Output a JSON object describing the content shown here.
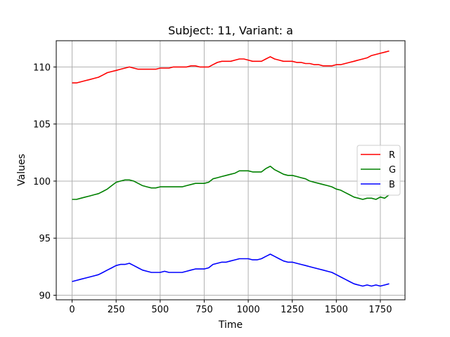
{
  "chart_data": {
    "type": "line",
    "title": "Subject: 11, Variant: a",
    "xlabel": "Time",
    "ylabel": "Values",
    "xlim": [
      -90,
      1890
    ],
    "ylim": [
      89.6,
      112.3
    ],
    "xticks": [
      0,
      250,
      500,
      750,
      1000,
      1250,
      1500,
      1750
    ],
    "yticks": [
      90,
      95,
      100,
      105,
      110
    ],
    "grid": true,
    "legend_position": "center-right",
    "series": [
      {
        "name": "R",
        "color": "#ff0000",
        "x": [
          0,
          25,
          50,
          75,
          100,
          125,
          150,
          175,
          200,
          225,
          250,
          275,
          300,
          325,
          350,
          375,
          400,
          425,
          450,
          475,
          500,
          525,
          550,
          575,
          600,
          625,
          650,
          675,
          700,
          725,
          750,
          775,
          800,
          825,
          850,
          875,
          900,
          925,
          950,
          975,
          1000,
          1025,
          1050,
          1075,
          1100,
          1125,
          1150,
          1175,
          1200,
          1225,
          1250,
          1275,
          1300,
          1325,
          1350,
          1375,
          1400,
          1425,
          1450,
          1475,
          1500,
          1525,
          1550,
          1575,
          1600,
          1625,
          1650,
          1675,
          1700,
          1725,
          1750,
          1775,
          1800
        ],
        "values": [
          108.6,
          108.6,
          108.7,
          108.8,
          108.9,
          109.0,
          109.1,
          109.3,
          109.5,
          109.6,
          109.7,
          109.8,
          109.9,
          110.0,
          109.9,
          109.8,
          109.8,
          109.8,
          109.8,
          109.8,
          109.9,
          109.9,
          109.9,
          110.0,
          110.0,
          110.0,
          110.0,
          110.1,
          110.1,
          110.0,
          110.0,
          110.0,
          110.2,
          110.4,
          110.5,
          110.5,
          110.5,
          110.6,
          110.7,
          110.7,
          110.6,
          110.5,
          110.5,
          110.5,
          110.7,
          110.9,
          110.7,
          110.6,
          110.5,
          110.5,
          110.5,
          110.4,
          110.4,
          110.3,
          110.3,
          110.2,
          110.2,
          110.1,
          110.1,
          110.1,
          110.2,
          110.2,
          110.3,
          110.4,
          110.5,
          110.6,
          110.7,
          110.8,
          111.0,
          111.1,
          111.2,
          111.3,
          111.4
        ]
      },
      {
        "name": "G",
        "color": "#008000",
        "x": [
          0,
          25,
          50,
          75,
          100,
          125,
          150,
          175,
          200,
          225,
          250,
          275,
          300,
          325,
          350,
          375,
          400,
          425,
          450,
          475,
          500,
          525,
          550,
          575,
          600,
          625,
          650,
          675,
          700,
          725,
          750,
          775,
          800,
          825,
          850,
          875,
          900,
          925,
          950,
          975,
          1000,
          1025,
          1050,
          1075,
          1100,
          1125,
          1150,
          1175,
          1200,
          1225,
          1250,
          1275,
          1300,
          1325,
          1350,
          1375,
          1400,
          1425,
          1450,
          1475,
          1500,
          1525,
          1550,
          1575,
          1600,
          1625,
          1650,
          1675,
          1700,
          1725,
          1750,
          1775,
          1800
        ],
        "values": [
          98.4,
          98.4,
          98.5,
          98.6,
          98.7,
          98.8,
          98.9,
          99.1,
          99.3,
          99.6,
          99.9,
          100.0,
          100.1,
          100.1,
          100.0,
          99.8,
          99.6,
          99.5,
          99.4,
          99.4,
          99.5,
          99.5,
          99.5,
          99.5,
          99.5,
          99.5,
          99.6,
          99.7,
          99.8,
          99.8,
          99.8,
          99.9,
          100.2,
          100.3,
          100.4,
          100.5,
          100.6,
          100.7,
          100.9,
          100.9,
          100.9,
          100.8,
          100.8,
          100.8,
          101.1,
          101.3,
          101.0,
          100.8,
          100.6,
          100.5,
          100.5,
          100.4,
          100.3,
          100.2,
          100.0,
          99.9,
          99.8,
          99.7,
          99.6,
          99.5,
          99.3,
          99.2,
          99.0,
          98.8,
          98.6,
          98.5,
          98.4,
          98.5,
          98.5,
          98.4,
          98.6,
          98.5,
          98.8
        ]
      },
      {
        "name": "B",
        "color": "#0000ff",
        "x": [
          0,
          25,
          50,
          75,
          100,
          125,
          150,
          175,
          200,
          225,
          250,
          275,
          300,
          325,
          350,
          375,
          400,
          425,
          450,
          475,
          500,
          525,
          550,
          575,
          600,
          625,
          650,
          675,
          700,
          725,
          750,
          775,
          800,
          825,
          850,
          875,
          900,
          925,
          950,
          975,
          1000,
          1025,
          1050,
          1075,
          1100,
          1125,
          1150,
          1175,
          1200,
          1225,
          1250,
          1275,
          1300,
          1325,
          1350,
          1375,
          1400,
          1425,
          1450,
          1475,
          1500,
          1525,
          1550,
          1575,
          1600,
          1625,
          1650,
          1675,
          1700,
          1725,
          1750,
          1775,
          1800
        ],
        "values": [
          91.2,
          91.3,
          91.4,
          91.5,
          91.6,
          91.7,
          91.8,
          92.0,
          92.2,
          92.4,
          92.6,
          92.7,
          92.7,
          92.8,
          92.6,
          92.4,
          92.2,
          92.1,
          92.0,
          92.0,
          92.0,
          92.1,
          92.0,
          92.0,
          92.0,
          92.0,
          92.1,
          92.2,
          92.3,
          92.3,
          92.3,
          92.4,
          92.7,
          92.8,
          92.9,
          92.9,
          93.0,
          93.1,
          93.2,
          93.2,
          93.2,
          93.1,
          93.1,
          93.2,
          93.4,
          93.6,
          93.4,
          93.2,
          93.0,
          92.9,
          92.9,
          92.8,
          92.7,
          92.6,
          92.5,
          92.4,
          92.3,
          92.2,
          92.1,
          92.0,
          91.8,
          91.6,
          91.4,
          91.2,
          91.0,
          90.9,
          90.8,
          90.9,
          90.8,
          90.9,
          90.8,
          90.9,
          91.0
        ]
      }
    ]
  }
}
